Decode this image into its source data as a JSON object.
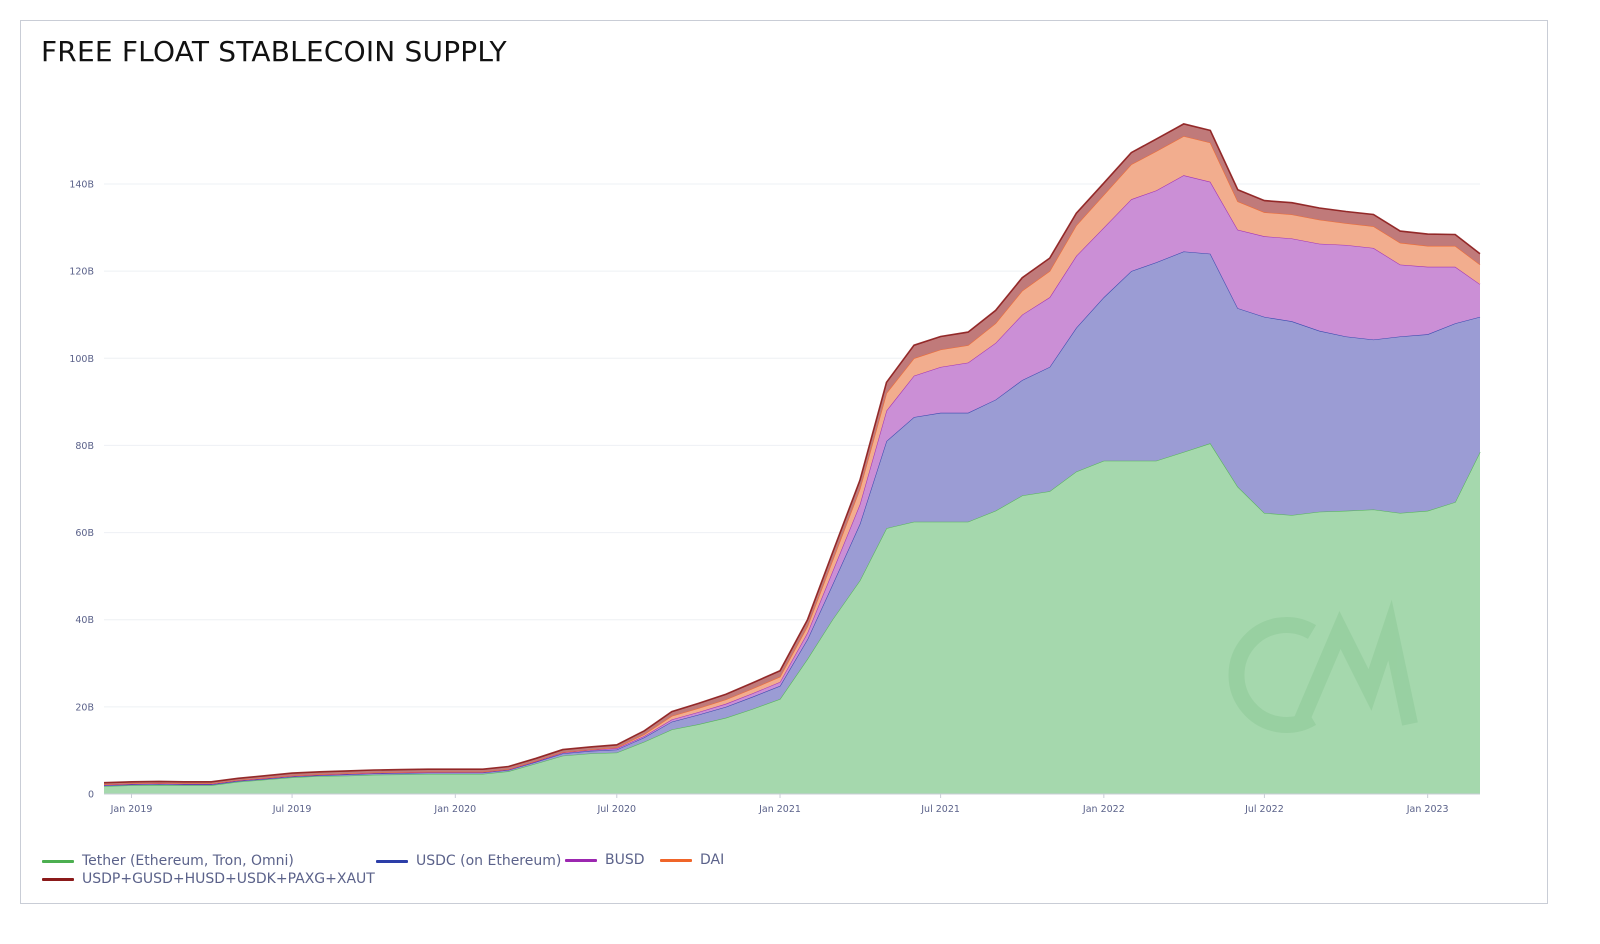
{
  "chart_data": {
    "type": "area",
    "title": "FREE FLOAT STABLECOIN SUPPLY",
    "stacked": true,
    "xlabel": "",
    "ylabel": "",
    "x_ticks": [
      "Jan 2019",
      "Jul 2019",
      "Jan 2020",
      "Jul 2020",
      "Jan 2021",
      "Jul 2021",
      "Jan 2022",
      "Jul 2022",
      "Jan 2023"
    ],
    "y_ticks": [
      "0",
      "20B",
      "40B",
      "60B",
      "80B",
      "100B",
      "120B",
      "140B"
    ],
    "ylim": [
      0,
      150
    ],
    "y_unit": "B",
    "grid": true,
    "legend_position": "bottom-left",
    "x": [
      "2018-12-01",
      "2019-01-01",
      "2019-02-01",
      "2019-03-01",
      "2019-04-01",
      "2019-05-01",
      "2019-06-01",
      "2019-07-01",
      "2019-08-01",
      "2019-09-01",
      "2019-10-01",
      "2019-11-01",
      "2019-12-01",
      "2020-01-01",
      "2020-02-01",
      "2020-03-01",
      "2020-04-01",
      "2020-05-01",
      "2020-06-01",
      "2020-07-01",
      "2020-08-01",
      "2020-09-01",
      "2020-10-01",
      "2020-11-01",
      "2020-12-01",
      "2021-01-01",
      "2021-02-01",
      "2021-03-01",
      "2021-04-01",
      "2021-05-01",
      "2021-06-01",
      "2021-07-01",
      "2021-08-01",
      "2021-09-01",
      "2021-10-01",
      "2021-11-01",
      "2021-12-01",
      "2022-01-01",
      "2022-02-01",
      "2022-03-01",
      "2022-04-01",
      "2022-05-01",
      "2022-06-01",
      "2022-07-01",
      "2022-08-01",
      "2022-09-01",
      "2022-10-01",
      "2022-11-01",
      "2022-12-01",
      "2023-01-01",
      "2023-02-01",
      "2023-03-01"
    ],
    "series": [
      {
        "name": "Tether (Ethereum, Tron, Omni)",
        "color": "#4caf50",
        "values": [
          1.8,
          2.0,
          2.1,
          2.0,
          2.0,
          2.8,
          3.3,
          3.8,
          4.1,
          4.2,
          4.4,
          4.5,
          4.6,
          4.6,
          4.6,
          5.2,
          7.0,
          8.8,
          9.3,
          9.5,
          12.0,
          14.8,
          16.0,
          17.5,
          19.5,
          21.8,
          31.0,
          40.0,
          49.0,
          61.0,
          62.5,
          62.5,
          62.5,
          65.0,
          68.5,
          69.5,
          74.0,
          76.5,
          76.5,
          76.5,
          78.5,
          80.5,
          70.5,
          64.5,
          64.0,
          64.8,
          65.0,
          65.3,
          64.5,
          65.0,
          67.0,
          78.5
        ]
      },
      {
        "name": "USDC (on Ethereum)",
        "color": "#2c3ea8",
        "values": [
          0.2,
          0.2,
          0.2,
          0.2,
          0.2,
          0.2,
          0.2,
          0.2,
          0.2,
          0.3,
          0.3,
          0.3,
          0.3,
          0.3,
          0.3,
          0.3,
          0.4,
          0.5,
          0.6,
          0.7,
          1.0,
          1.8,
          2.2,
          2.5,
          2.8,
          3.0,
          4.5,
          8.0,
          13.0,
          20.0,
          24.0,
          25.0,
          25.0,
          25.5,
          26.5,
          28.5,
          33.0,
          37.5,
          43.5,
          45.5,
          46.0,
          43.5,
          41.0,
          45.0,
          44.5,
          41.5,
          40.0,
          39.0,
          40.5,
          40.5,
          41.0,
          31.0
        ]
      },
      {
        "name": "BUSD",
        "color": "#9c27b0",
        "values": [
          0.1,
          0.1,
          0.1,
          0.1,
          0.1,
          0.1,
          0.1,
          0.1,
          0.1,
          0.1,
          0.1,
          0.1,
          0.1,
          0.1,
          0.1,
          0.1,
          0.1,
          0.2,
          0.2,
          0.3,
          0.3,
          0.5,
          0.6,
          0.7,
          0.8,
          0.9,
          1.5,
          3.0,
          4.5,
          7.0,
          9.5,
          10.5,
          11.5,
          13.0,
          15.0,
          16.0,
          16.5,
          16.0,
          16.5,
          16.5,
          17.5,
          16.5,
          18.0,
          18.5,
          19.0,
          20.0,
          21.0,
          21.0,
          16.5,
          15.5,
          13.0,
          7.5
        ]
      },
      {
        "name": "DAI",
        "color": "#f06529",
        "values": [
          0.1,
          0.1,
          0.1,
          0.1,
          0.1,
          0.1,
          0.1,
          0.1,
          0.1,
          0.1,
          0.1,
          0.1,
          0.1,
          0.1,
          0.1,
          0.1,
          0.1,
          0.1,
          0.1,
          0.2,
          0.4,
          0.8,
          0.9,
          1.0,
          1.1,
          1.2,
          1.5,
          2.5,
          3.5,
          4.0,
          4.0,
          4.0,
          4.0,
          4.5,
          5.5,
          6.0,
          7.0,
          7.5,
          8.0,
          9.0,
          9.0,
          9.0,
          6.5,
          5.5,
          5.5,
          5.5,
          5.0,
          5.0,
          5.0,
          4.8,
          4.8,
          4.5
        ]
      },
      {
        "name": "USDP+GUSD+HUSD+USDK+PAXG+XAUT",
        "color": "#8b1a1a",
        "values": [
          0.4,
          0.4,
          0.4,
          0.4,
          0.4,
          0.4,
          0.5,
          0.6,
          0.6,
          0.6,
          0.6,
          0.6,
          0.6,
          0.6,
          0.6,
          0.6,
          0.6,
          0.6,
          0.6,
          0.6,
          0.8,
          1.0,
          1.1,
          1.2,
          1.3,
          1.4,
          1.5,
          1.8,
          2.0,
          2.5,
          3.0,
          3.0,
          3.0,
          3.0,
          3.0,
          3.0,
          2.8,
          2.7,
          2.7,
          2.8,
          2.8,
          2.8,
          2.7,
          2.7,
          2.7,
          2.7,
          2.7,
          2.7,
          2.7,
          2.7,
          2.6,
          2.5
        ]
      }
    ]
  }
}
